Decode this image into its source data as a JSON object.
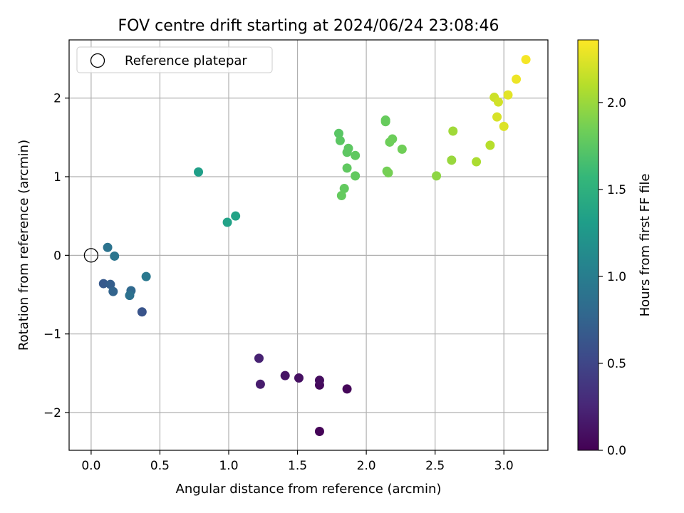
{
  "chart_data": {
    "type": "scatter",
    "title": "FOV centre drift starting at 2024/06/24 23:08:46",
    "xlabel": "Angular distance from reference (arcmin)",
    "ylabel": "Rotation from reference (arcmin)",
    "xlim": [
      -0.16,
      3.32
    ],
    "ylim": [
      -2.48,
      2.74
    ],
    "xticks": [
      0.0,
      0.5,
      1.0,
      1.5,
      2.0,
      2.5,
      3.0
    ],
    "xtick_labels": [
      "0.0",
      "0.5",
      "1.0",
      "1.5",
      "2.0",
      "2.5",
      "3.0"
    ],
    "yticks": [
      -2,
      -1,
      0,
      1,
      2
    ],
    "ytick_labels": [
      "−2",
      "−1",
      "0",
      "1",
      "2"
    ],
    "grid": true,
    "legend": {
      "position": "top-left",
      "entries": [
        "Reference platepar"
      ]
    },
    "reference_point": {
      "x": 0.0,
      "y": 0.0,
      "marker": "open-circle"
    },
    "colorbar": {
      "label": "Hours from first FF file",
      "colormap": "viridis",
      "range": [
        0.0,
        2.36
      ],
      "ticks": [
        0.0,
        0.5,
        1.0,
        1.5,
        2.0
      ],
      "tick_labels": [
        "0.0",
        "0.5",
        "1.0",
        "1.5",
        "2.0"
      ]
    },
    "points": [
      {
        "x": 1.66,
        "y": -2.24,
        "c": 0.02
      },
      {
        "x": 1.86,
        "y": -1.7,
        "c": 0.04
      },
      {
        "x": 1.66,
        "y": -1.65,
        "c": 0.06
      },
      {
        "x": 1.66,
        "y": -1.59,
        "c": 0.08
      },
      {
        "x": 1.51,
        "y": -1.56,
        "c": 0.1
      },
      {
        "x": 1.41,
        "y": -1.53,
        "c": 0.12
      },
      {
        "x": 1.23,
        "y": -1.64,
        "c": 0.18
      },
      {
        "x": 1.22,
        "y": -1.31,
        "c": 0.22
      },
      {
        "x": 0.37,
        "y": -0.72,
        "c": 0.62
      },
      {
        "x": 0.09,
        "y": -0.36,
        "c": 0.66
      },
      {
        "x": 0.14,
        "y": -0.37,
        "c": 0.7
      },
      {
        "x": 0.16,
        "y": -0.46,
        "c": 0.75
      },
      {
        "x": 0.29,
        "y": -0.45,
        "c": 0.8
      },
      {
        "x": 0.28,
        "y": -0.51,
        "c": 0.88
      },
      {
        "x": 0.12,
        "y": 0.1,
        "c": 0.9
      },
      {
        "x": 0.17,
        "y": -0.01,
        "c": 0.92
      },
      {
        "x": 0.4,
        "y": -0.27,
        "c": 0.95
      },
      {
        "x": 0.78,
        "y": 1.06,
        "c": 1.32
      },
      {
        "x": 0.99,
        "y": 0.42,
        "c": 1.35
      },
      {
        "x": 1.05,
        "y": 0.5,
        "c": 1.36
      },
      {
        "x": 1.8,
        "y": 1.55,
        "c": 1.74
      },
      {
        "x": 1.81,
        "y": 1.46,
        "c": 1.75
      },
      {
        "x": 1.87,
        "y": 1.36,
        "c": 1.76
      },
      {
        "x": 1.86,
        "y": 1.31,
        "c": 1.76
      },
      {
        "x": 1.92,
        "y": 1.27,
        "c": 1.77
      },
      {
        "x": 1.86,
        "y": 1.11,
        "c": 1.77
      },
      {
        "x": 1.92,
        "y": 1.01,
        "c": 1.78
      },
      {
        "x": 1.84,
        "y": 0.85,
        "c": 1.78
      },
      {
        "x": 1.82,
        "y": 0.76,
        "c": 1.79
      },
      {
        "x": 2.14,
        "y": 1.72,
        "c": 1.8
      },
      {
        "x": 2.14,
        "y": 1.7,
        "c": 1.8
      },
      {
        "x": 2.19,
        "y": 1.48,
        "c": 1.82
      },
      {
        "x": 2.17,
        "y": 1.44,
        "c": 1.83
      },
      {
        "x": 2.26,
        "y": 1.35,
        "c": 1.84
      },
      {
        "x": 2.15,
        "y": 1.07,
        "c": 1.85
      },
      {
        "x": 2.16,
        "y": 1.05,
        "c": 1.86
      },
      {
        "x": 2.51,
        "y": 1.01,
        "c": 1.95
      },
      {
        "x": 2.62,
        "y": 1.21,
        "c": 1.99
      },
      {
        "x": 2.63,
        "y": 1.58,
        "c": 2.02
      },
      {
        "x": 2.8,
        "y": 1.19,
        "c": 2.06
      },
      {
        "x": 2.9,
        "y": 1.4,
        "c": 2.1
      },
      {
        "x": 2.93,
        "y": 2.01,
        "c": 2.18
      },
      {
        "x": 2.96,
        "y": 1.95,
        "c": 2.2
      },
      {
        "x": 2.95,
        "y": 1.76,
        "c": 2.22
      },
      {
        "x": 3.0,
        "y": 1.64,
        "c": 2.24
      },
      {
        "x": 3.03,
        "y": 2.04,
        "c": 2.26
      },
      {
        "x": 3.09,
        "y": 2.24,
        "c": 2.3
      },
      {
        "x": 3.16,
        "y": 2.49,
        "c": 2.33
      }
    ]
  }
}
